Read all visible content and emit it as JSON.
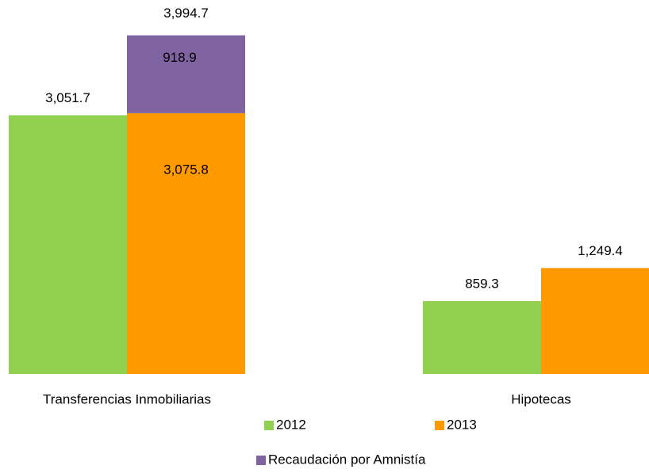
{
  "chart_data": {
    "type": "bar",
    "categories": [
      "Transferencias Inmobiliarias",
      "Hipotecas"
    ],
    "series": [
      {
        "name": "2012",
        "color": "#92d050",
        "values": [
          3051.7,
          859.3
        ],
        "value_labels": [
          "3,051.7",
          "859.3"
        ]
      },
      {
        "name": "2013",
        "color": "#ff9900",
        "values": [
          3075.8,
          1249.4
        ],
        "value_labels": [
          "3,075.8",
          "1,249.4"
        ]
      },
      {
        "name": "Recaudación por Amnistía",
        "color": "#8064a2",
        "values": [
          918.9,
          null
        ],
        "value_labels": [
          "918.9",
          null
        ],
        "stack_on": 1
      }
    ],
    "stack_totals": {
      "values": [
        3994.7,
        null
      ],
      "value_labels": [
        "3,994.7",
        null
      ]
    },
    "ylim": [
      0,
      4000
    ]
  }
}
